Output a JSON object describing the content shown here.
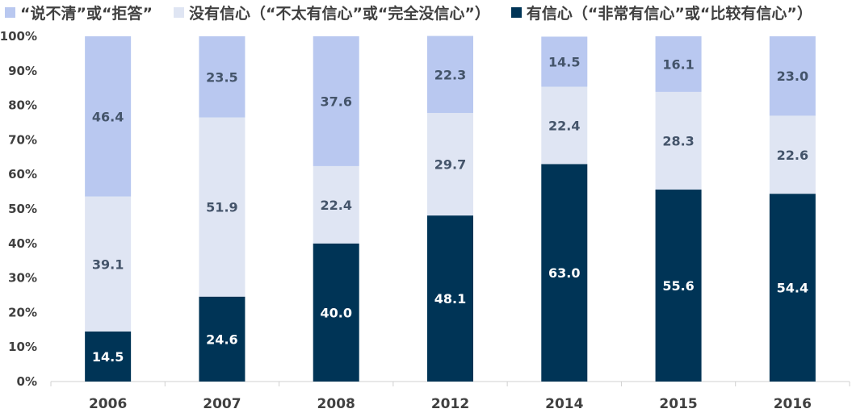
{
  "legend": [
    {
      "label": "“说不清”或“拒答”",
      "color": "#b9c8f0"
    },
    {
      "label": "没有信心（“不太有信心”或“完全没信心”）",
      "color": "#dfe5f3"
    },
    {
      "label": "有信心（“非常有信心”或“比较有信心”）",
      "color": "#003456"
    }
  ],
  "chart_data": {
    "type": "bar",
    "stacked": true,
    "categories": [
      "2006",
      "2007",
      "2008",
      "2012",
      "2014",
      "2015",
      "2016"
    ],
    "series": [
      {
        "name": "有信心（“非常有信心”或“比较有信心”）",
        "color": "#003456",
        "label_color": "#ffffff",
        "values": [
          14.5,
          24.6,
          40.0,
          48.1,
          63.0,
          55.6,
          54.4
        ]
      },
      {
        "name": "没有信心（“不太有信心”或“完全没信心”）",
        "color": "#dfe5f3",
        "label_color": "#44546a",
        "values": [
          39.1,
          51.9,
          22.4,
          29.7,
          22.4,
          28.3,
          22.6
        ]
      },
      {
        "name": "“说不清”或“拒答”",
        "color": "#b9c8f0",
        "label_color": "#44546a",
        "values": [
          46.4,
          23.5,
          37.6,
          22.3,
          14.5,
          16.1,
          23.0
        ]
      }
    ],
    "y_ticks": [
      "0%",
      "10%",
      "20%",
      "30%",
      "40%",
      "50%",
      "60%",
      "70%",
      "80%",
      "90%",
      "100%"
    ],
    "ylim": [
      0,
      100
    ],
    "title": "",
    "xlabel": "",
    "ylabel": "",
    "legend_position": "top-left",
    "grid": false
  }
}
